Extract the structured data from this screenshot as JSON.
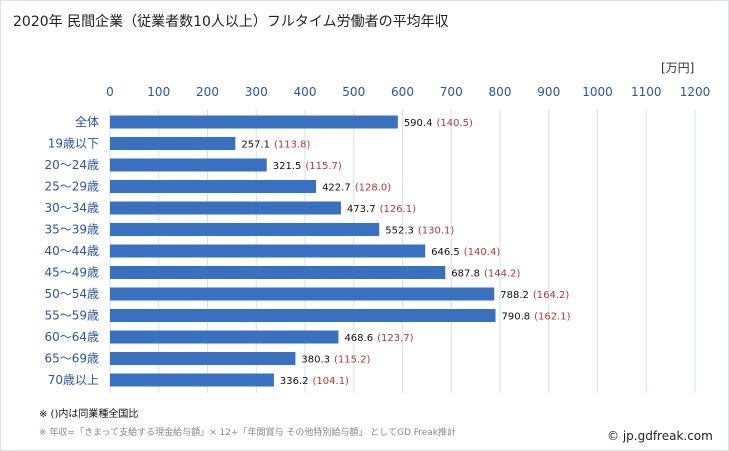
{
  "title": "2020年 民間企業（従業者数10人以上）フルタイム労働者の平均年収",
  "notes": [
    "※ ()内は同業種全国比",
    "※ 年収=「きまって支給する現金給与額」× 12+「年間賞与 その他特別給与額」 としてGD Freak推計"
  ],
  "copyright": "© jp.gdfreak.com",
  "chart_data": {
    "type": "bar",
    "orientation": "horizontal",
    "unit": "[万円]",
    "xlim": [
      0,
      1200
    ],
    "ticks": [
      0,
      100,
      200,
      300,
      400,
      500,
      600,
      700,
      800,
      900,
      1000,
      1100,
      1200
    ],
    "grid": true,
    "categories": [
      "全体",
      "19歳以下",
      "20～24歳",
      "25～29歳",
      "30～34歳",
      "35～39歳",
      "40～44歳",
      "45～49歳",
      "50～54歳",
      "55～59歳",
      "60～64歳",
      "65～69歳",
      "70歳以上"
    ],
    "values": [
      590.4,
      257.1,
      321.5,
      422.7,
      473.7,
      552.3,
      646.5,
      687.8,
      788.2,
      790.8,
      468.6,
      380.3,
      336.2
    ],
    "ratios": [
      "(140.5)",
      "(113.8)",
      "(115.7)",
      "(128.0)",
      "(126.1)",
      "(130.1)",
      "(140.4)",
      "(144.2)",
      "(164.2)",
      "(162.1)",
      "(123.7)",
      "(115.2)",
      "(104.1)"
    ],
    "colors": {
      "bar": "#3a70c0",
      "ratio": "#b03a3a",
      "tick": "#2f5597",
      "grid": "#d6e2f0"
    }
  }
}
